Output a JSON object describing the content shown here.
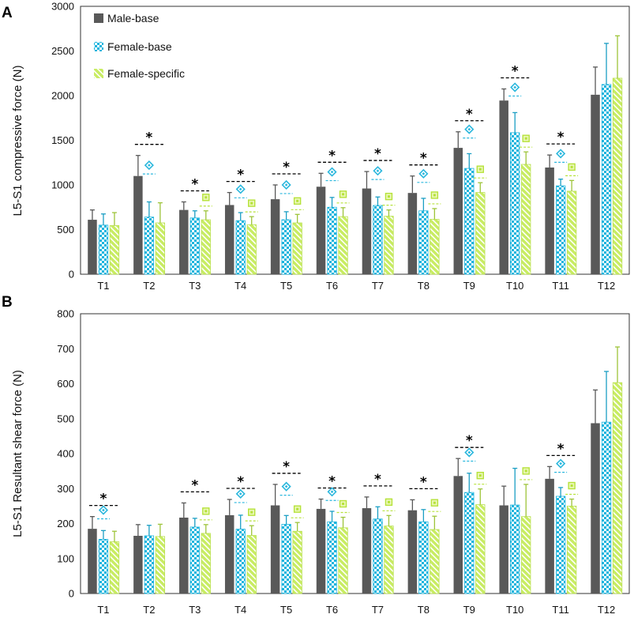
{
  "colors": {
    "male": "#595959",
    "female_base_fill": "#1cb4dd",
    "female_base_check": "#ffffff",
    "female_specific_fill": "#c8ec62",
    "female_specific_stripe": "#ffffff",
    "significance_line": "#000000",
    "marker_diamond": "#2ab7dd",
    "marker_square": "#b6e23a"
  },
  "legend": {
    "male": "Male-base",
    "female_base": "Female-base",
    "female_specific": "Female-specific"
  },
  "chart_data": [
    {
      "panel": "A",
      "type": "bar",
      "title": "",
      "xlabel": "",
      "ylabel": "L5-S1 compressive force (N)",
      "ylim": [
        0,
        3000
      ],
      "yticks": [
        0,
        500,
        1000,
        1500,
        2000,
        2500,
        3000
      ],
      "legend_position": "top-left",
      "categories": [
        "T1",
        "T2",
        "T3",
        "T4",
        "T5",
        "T6",
        "T7",
        "T8",
        "T9",
        "T10",
        "T11",
        "T12"
      ],
      "series": [
        {
          "name": "Male-base",
          "values": [
            610,
            1100,
            720,
            775,
            840,
            980,
            960,
            910,
            1415,
            1945,
            1195,
            2010
          ],
          "errors": [
            110,
            230,
            90,
            140,
            160,
            150,
            190,
            190,
            180,
            130,
            140,
            310
          ]
        },
        {
          "name": "Female-base",
          "values": [
            550,
            640,
            630,
            600,
            610,
            750,
            770,
            710,
            1185,
            1585,
            990,
            2125
          ],
          "errors": [
            125,
            170,
            80,
            90,
            90,
            110,
            95,
            140,
            165,
            225,
            75,
            460
          ]
        },
        {
          "name": "Female-specific",
          "values": [
            545,
            575,
            610,
            555,
            575,
            645,
            650,
            615,
            915,
            1230,
            930,
            2195
          ],
          "errors": [
            145,
            225,
            100,
            90,
            95,
            100,
            70,
            120,
            110,
            140,
            120,
            475
          ]
        }
      ],
      "significance": {
        "star_label": "*",
        "stars": [
          "T2",
          "T3",
          "T4",
          "T5",
          "T6",
          "T7",
          "T8",
          "T9",
          "T10",
          "T11"
        ],
        "female_base_markers": [
          "T2",
          "T4",
          "T5",
          "T6",
          "T7",
          "T8",
          "T9",
          "T10",
          "T11"
        ],
        "female_specific_markers": [
          "T3",
          "T4",
          "T5",
          "T6",
          "T7",
          "T8",
          "T9",
          "T10",
          "T11"
        ]
      }
    },
    {
      "panel": "B",
      "type": "bar",
      "title": "",
      "xlabel": "",
      "ylabel": "L5-S1 Resultant shear  force (N)",
      "ylim": [
        0,
        800
      ],
      "yticks": [
        0,
        100,
        200,
        300,
        400,
        500,
        600,
        700,
        800
      ],
      "legend_position": "none",
      "categories": [
        "T1",
        "T2",
        "T3",
        "T4",
        "T5",
        "T6",
        "T7",
        "T8",
        "T9",
        "T10",
        "T11",
        "T12"
      ],
      "series": [
        {
          "name": "Male-base",
          "values": [
            185,
            165,
            217,
            224,
            252,
            242,
            244,
            238,
            336,
            252,
            328,
            487
          ],
          "errors": [
            35,
            32,
            42,
            45,
            60,
            28,
            32,
            30,
            50,
            55,
            35,
            95
          ]
        },
        {
          "name": "Female-base",
          "values": [
            155,
            165,
            190,
            184,
            198,
            205,
            213,
            205,
            289,
            253,
            278,
            490
          ],
          "errors": [
            25,
            30,
            25,
            40,
            25,
            30,
            35,
            35,
            55,
            105,
            25,
            145
          ]
        },
        {
          "name": "Female-specific",
          "values": [
            148,
            163,
            172,
            166,
            178,
            188,
            193,
            183,
            254,
            220,
            250,
            603
          ],
          "errors": [
            30,
            35,
            25,
            28,
            25,
            30,
            30,
            38,
            45,
            92,
            20,
            102
          ]
        }
      ],
      "significance": {
        "star_label": "*",
        "stars": [
          "T1",
          "T3",
          "T4",
          "T5",
          "T6",
          "T7",
          "T8",
          "T9",
          "T11"
        ],
        "female_base_markers": [
          "T1",
          "T4",
          "T5",
          "T6",
          "T9",
          "T11"
        ],
        "female_specific_markers": [
          "T3",
          "T4",
          "T5",
          "T6",
          "T7",
          "T8",
          "T9",
          "T10",
          "T11"
        ]
      }
    }
  ]
}
